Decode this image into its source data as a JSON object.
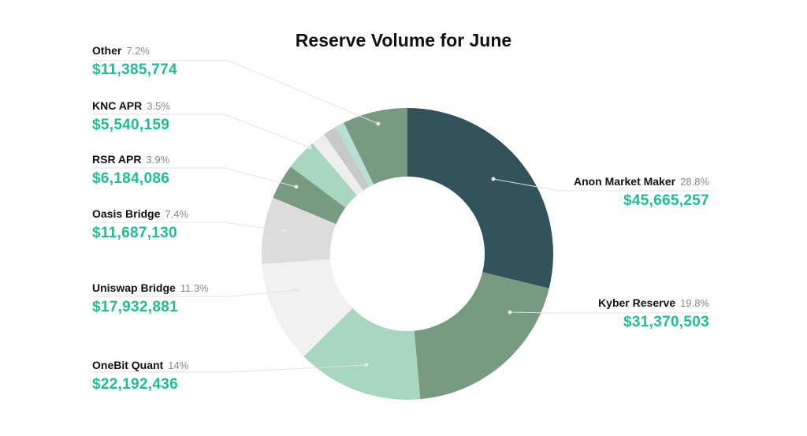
{
  "chart_data": {
    "type": "pie",
    "variant": "donut",
    "title": "Reserve Volume for June",
    "slices": [
      {
        "name": "Anon Market Maker",
        "percent_label": "28.8%",
        "percent": 28.8,
        "value_label": "$45,665,257",
        "value": 45665257,
        "color": "#33535b",
        "labeled": true
      },
      {
        "name": "Kyber Reserve",
        "percent_label": "19.8%",
        "percent": 19.8,
        "value_label": "$31,370,503",
        "value": 31370503,
        "color": "#779a80",
        "labeled": true
      },
      {
        "name": "OneBit Quant",
        "percent_label": "14%",
        "percent": 14,
        "value_label": "$22,192,436",
        "value": 22192436,
        "color": "#a9d6be",
        "labeled": true
      },
      {
        "name": "Uniswap Bridge",
        "percent_label": "11.3%",
        "percent": 11.3,
        "value_label": "$17,932,881",
        "value": 17932881,
        "color": "#f0f1f0",
        "labeled": true
      },
      {
        "name": "Oasis Bridge",
        "percent_label": "7.4%",
        "percent": 7.4,
        "value_label": "$11,687,130",
        "value": 11687130,
        "color": "#dcdcdc",
        "labeled": true
      },
      {
        "name": "RSR APR",
        "percent_label": "3.9%",
        "percent": 3.9,
        "value_label": "$6,184,086",
        "value": 6184086,
        "color": "#779a80",
        "labeled": true
      },
      {
        "name": "KNC APR",
        "percent_label": "3.5%",
        "percent": 3.5,
        "value_label": "$5,540,159",
        "value": 5540159,
        "color": "#a9d6be",
        "labeled": true
      },
      {
        "percent": 1.6,
        "color": "#eeeeee",
        "labeled": false
      },
      {
        "percent": 1.5,
        "color": "#c8c8c8",
        "labeled": false
      },
      {
        "percent": 1.0,
        "color": "#b8e0d2",
        "labeled": false
      },
      {
        "name": "Other",
        "percent_label": "7.2%",
        "percent": 7.2,
        "value_label": "$11,385,774",
        "value": 11385774,
        "color": "#779a80",
        "labeled": true
      }
    ]
  }
}
